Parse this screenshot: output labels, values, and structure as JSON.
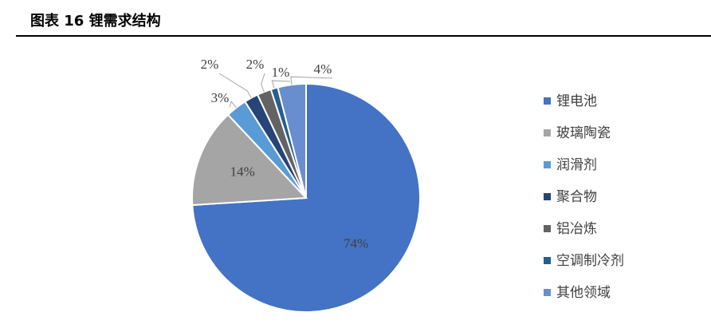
{
  "chart_data": {
    "type": "pie",
    "title": "图表 16 锂需求结构",
    "categories": [
      "锂电池",
      "玻璃陶瓷",
      "润滑剂",
      "聚合物",
      "铝冶炼",
      "空调制冷剂",
      "其他领域"
    ],
    "values": [
      74,
      14,
      3,
      2,
      2,
      1,
      4
    ],
    "value_labels": [
      "74%",
      "14%",
      "3%",
      "2%",
      "2%",
      "1%",
      "4%"
    ],
    "colors": [
      "#4472c4",
      "#a5a5a5",
      "#5b9bd5",
      "#264478",
      "#636363",
      "#255e91",
      "#698ed0"
    ],
    "legend": "right"
  }
}
